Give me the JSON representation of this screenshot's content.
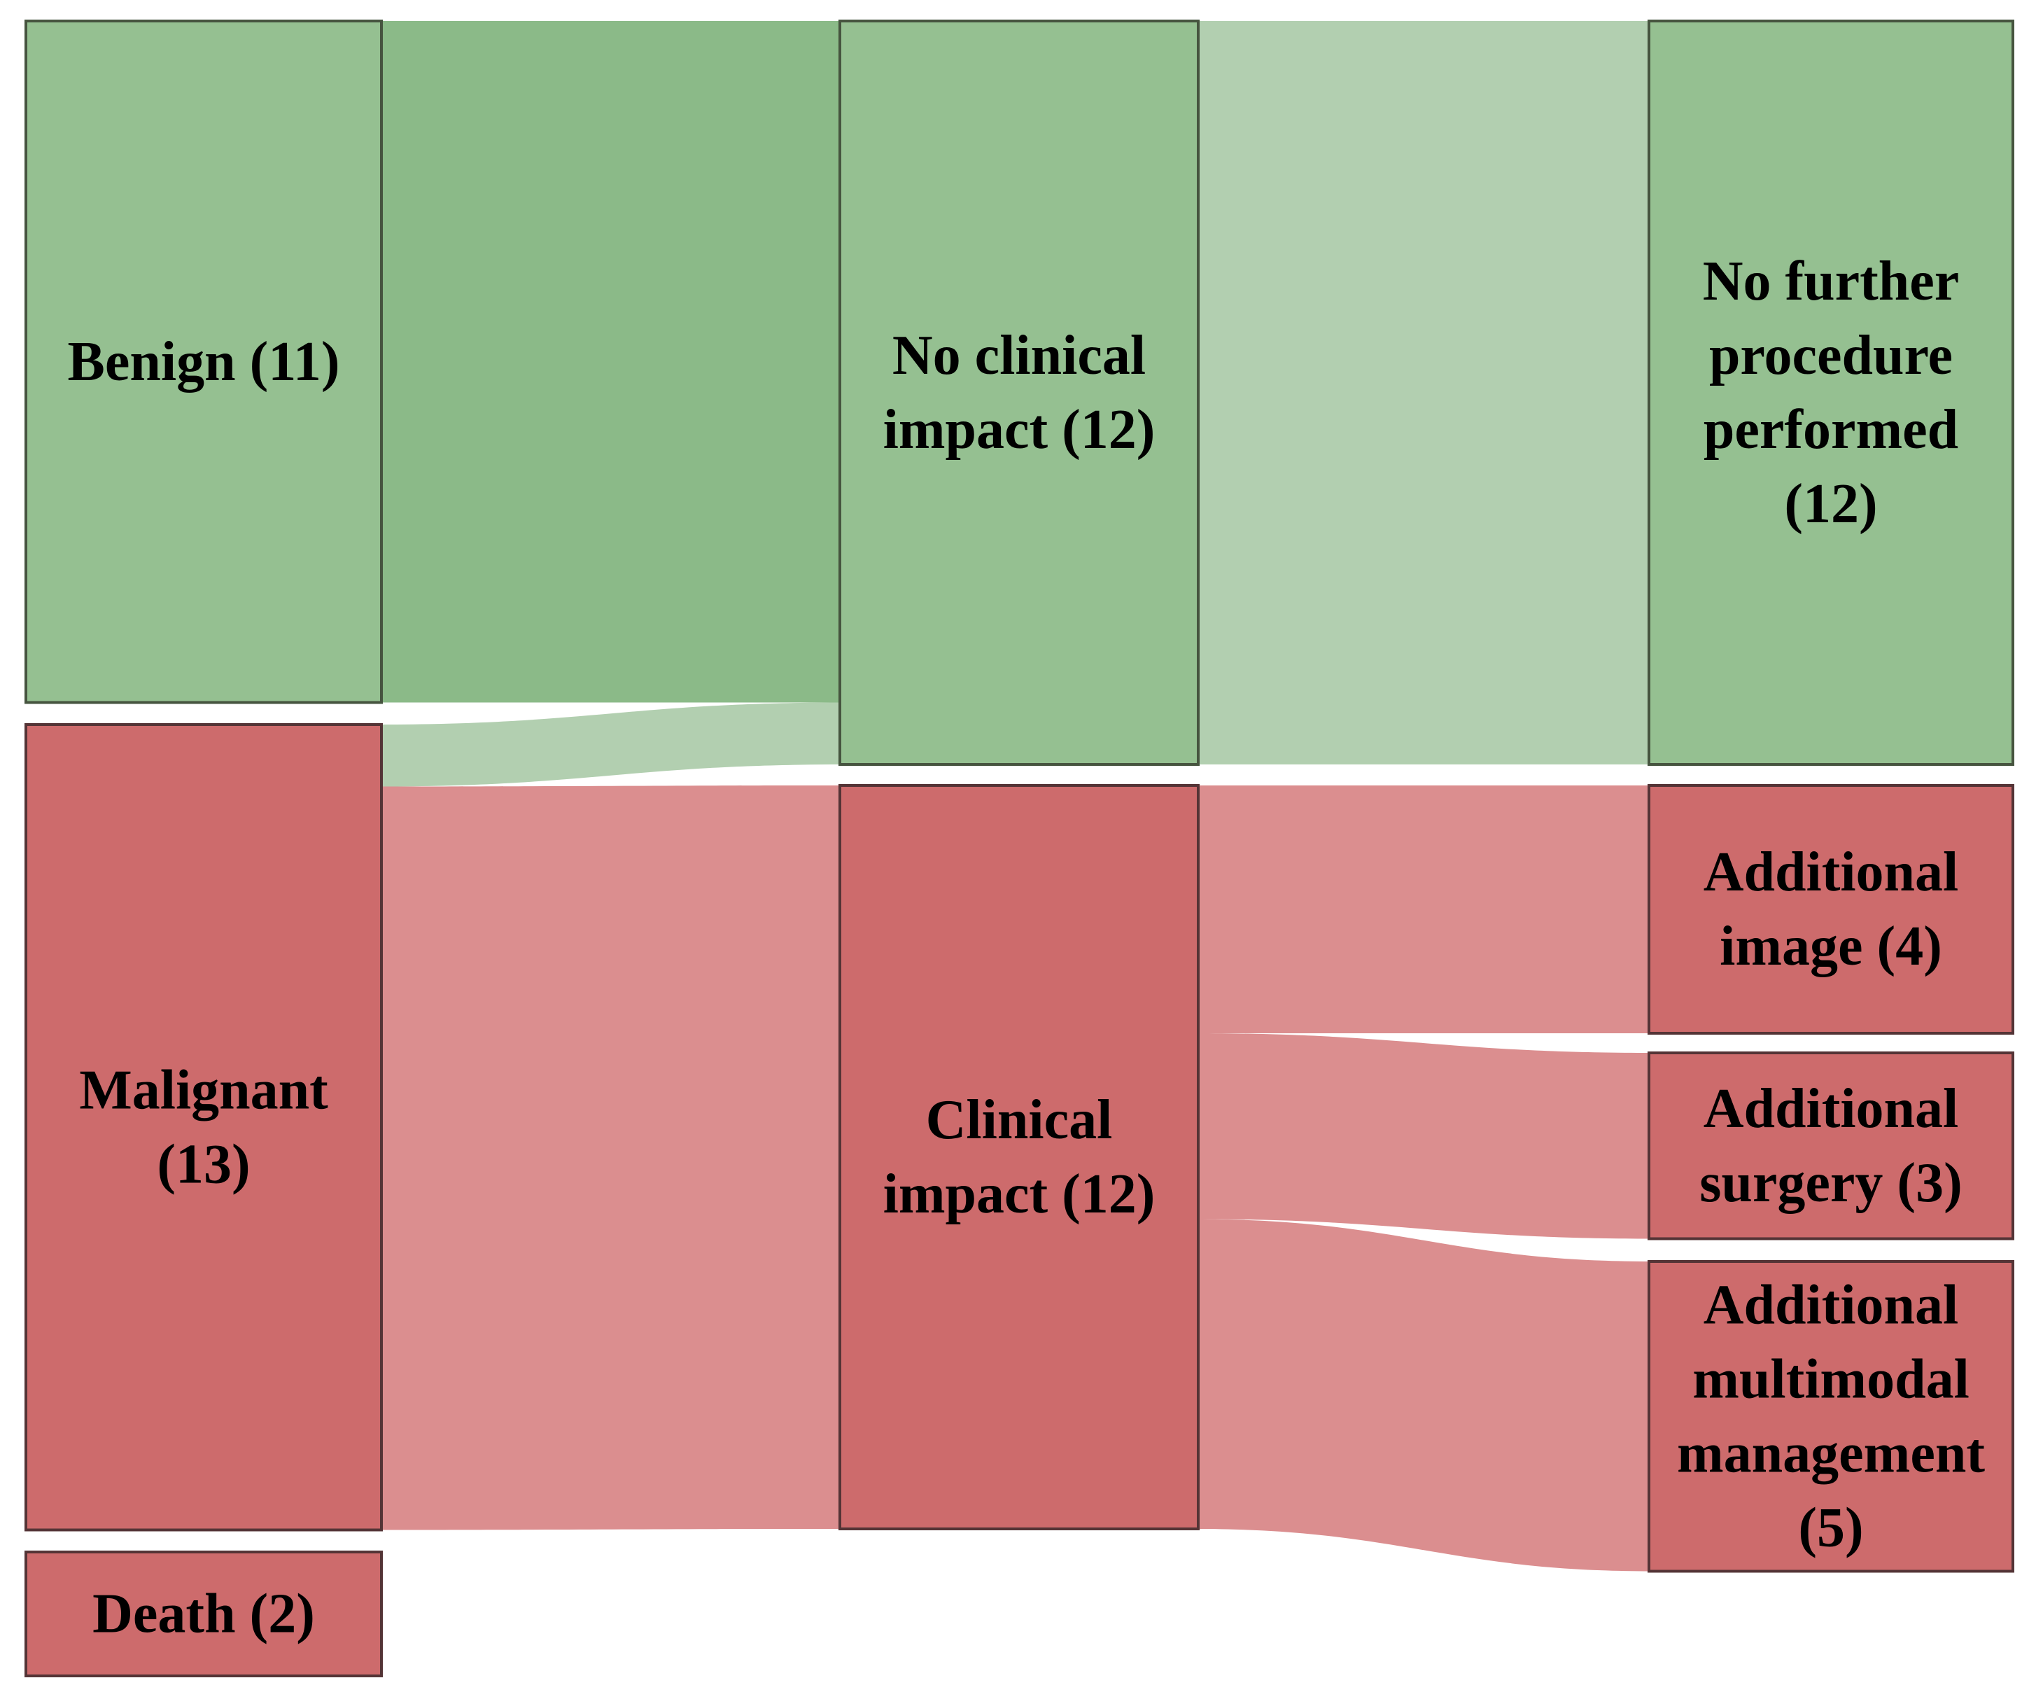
{
  "figure": {
    "title": "Sankey diagram of diagnosis, clinical impact and subsequent procedures",
    "background": "#ffffff"
  },
  "chart_data": {
    "type": "sankey",
    "title": "",
    "legend": "none",
    "columns": [
      {
        "index": 0,
        "role": "diagnosis"
      },
      {
        "index": 1,
        "role": "clinical-impact"
      },
      {
        "index": 2,
        "role": "subsequent-procedure"
      }
    ],
    "nodes": [
      {
        "id": "benign",
        "label": "Benign (11)",
        "label_lines": [
          "Benign (11)"
        ],
        "value": 11,
        "group": "green",
        "column": 0
      },
      {
        "id": "malignant",
        "label": "Malignant (13)",
        "label_lines": [
          "Malignant",
          "(13)"
        ],
        "value": 13,
        "group": "red",
        "column": 0
      },
      {
        "id": "death",
        "label": "Death (2)",
        "label_lines": [
          "Death (2)"
        ],
        "value": 2,
        "group": "red",
        "column": 0
      },
      {
        "id": "no-clinical-impact",
        "label": "No clinical impact (12)",
        "label_lines": [
          "No clinical",
          "impact (12)"
        ],
        "value": 12,
        "group": "green",
        "column": 1
      },
      {
        "id": "clinical-impact",
        "label": "Clinical impact (12)",
        "label_lines": [
          "Clinical",
          "impact (12)"
        ],
        "value": 12,
        "group": "red",
        "column": 1
      },
      {
        "id": "no-further-procedure",
        "label": "No further procedure performed (12)",
        "label_lines": [
          "No further",
          "procedure",
          "performed",
          "(12)"
        ],
        "value": 12,
        "group": "green",
        "column": 2
      },
      {
        "id": "additional-image",
        "label": "Additional image (4)",
        "label_lines": [
          "Additional",
          "image (4)"
        ],
        "value": 4,
        "group": "red",
        "column": 2
      },
      {
        "id": "additional-surgery",
        "label": "Additional surgery (3)",
        "label_lines": [
          "Additional",
          "surgery (3)"
        ],
        "value": 3,
        "group": "red",
        "column": 2
      },
      {
        "id": "additional-multimodal",
        "label": "Additional multimodal management (5)",
        "label_lines": [
          "Additional",
          "multimodal",
          "management",
          "(5)"
        ],
        "value": 5,
        "group": "red",
        "column": 2
      }
    ],
    "links": [
      {
        "source": "benign",
        "target": "no-clinical-impact",
        "value": 11,
        "color_key": "flow_green"
      },
      {
        "source": "malignant",
        "target": "no-clinical-impact",
        "value": 1,
        "color_key": "flow_green_light"
      },
      {
        "source": "malignant",
        "target": "clinical-impact",
        "value": 12,
        "color_key": "flow_pink"
      },
      {
        "source": "no-clinical-impact",
        "target": "no-further-procedure",
        "value": 12,
        "color_key": "flow_green_light"
      },
      {
        "source": "clinical-impact",
        "target": "additional-image",
        "value": 4,
        "color_key": "flow_pink"
      },
      {
        "source": "clinical-impact",
        "target": "additional-surgery",
        "value": 3,
        "color_key": "flow_pink"
      },
      {
        "source": "clinical-impact",
        "target": "additional-multimodal",
        "value": 5,
        "color_key": "flow_pink"
      }
    ],
    "colors": {
      "node_green": "#95c091",
      "node_red": "#cd6b6c",
      "border_green": "#46543f",
      "border_red": "#543436",
      "flow_green": "#8bba88",
      "flow_green_light": "#b2cfb0",
      "flow_pink": "#db8e8f",
      "text": "#000000",
      "background": "#ffffff"
    }
  }
}
